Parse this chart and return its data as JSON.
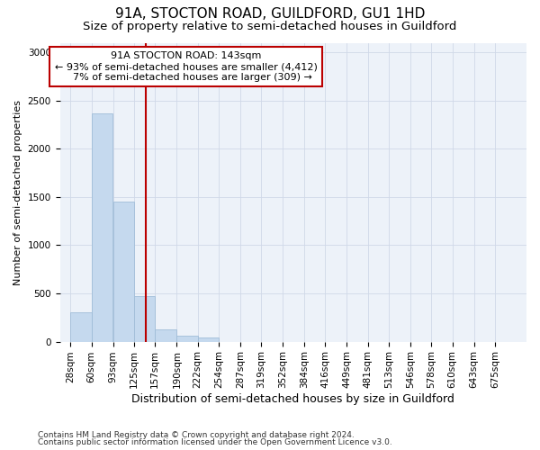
{
  "title1": "91A, STOCTON ROAD, GUILDFORD, GU1 1HD",
  "title2": "Size of property relative to semi-detached houses in Guildford",
  "xlabel": "Distribution of semi-detached houses by size in Guildford",
  "ylabel": "Number of semi-detached properties",
  "footnote1": "Contains HM Land Registry data © Crown copyright and database right 2024.",
  "footnote2": "Contains public sector information licensed under the Open Government Licence v3.0.",
  "bar_color": "#c5d9ee",
  "bar_edge_color": "#a0bdd8",
  "property_size": 143,
  "property_label": "91A STOCTON ROAD: 143sqm",
  "pct_smaller": 93,
  "pct_smaller_n": "4,412",
  "pct_larger": 7,
  "pct_larger_n": 309,
  "vline_color": "#bb0000",
  "annotation_box_color": "#bb0000",
  "bin_edges": [
    28,
    60,
    93,
    125,
    157,
    190,
    222,
    254,
    287,
    319,
    352,
    384,
    416,
    449,
    481,
    513,
    546,
    578,
    610,
    643,
    675
  ],
  "bin_counts": [
    300,
    2370,
    1455,
    470,
    130,
    60,
    45,
    0,
    0,
    0,
    0,
    0,
    0,
    0,
    0,
    0,
    0,
    0,
    0,
    0
  ],
  "ylim": [
    0,
    3100
  ],
  "yticks": [
    0,
    500,
    1000,
    1500,
    2000,
    2500,
    3000
  ],
  "title1_fontsize": 11,
  "title2_fontsize": 9.5,
  "xlabel_fontsize": 9,
  "ylabel_fontsize": 8,
  "tick_fontsize": 7.5,
  "annotation_fontsize": 8,
  "footnote_fontsize": 6.5
}
